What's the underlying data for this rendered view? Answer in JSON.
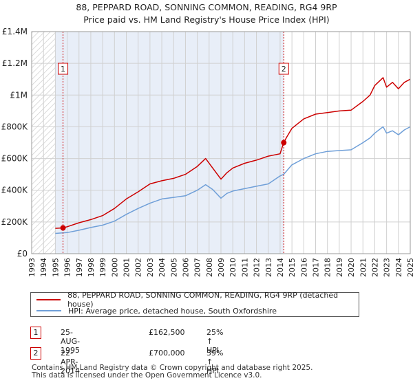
{
  "title_line1": "88, PEPPARD ROAD, SONNING COMMON, READING, RG4 9RP",
  "title_line2": "Price paid vs. HM Land Registry's House Price Index (HPI)",
  "colors": {
    "property": "#cc0000",
    "hpi": "#6f9fd8",
    "shade": "#e8eef8",
    "grid": "#d0d0d0"
  },
  "chart_data": {
    "type": "line",
    "title": "88, PEPPARD ROAD, SONNING COMMON, READING, RG4 9RP — Price paid vs. HM Land Registry's House Price Index (HPI)",
    "xlabel": "",
    "ylabel": "",
    "xlim": [
      1993,
      2025
    ],
    "ylim": [
      0,
      1400000
    ],
    "y_ticks": [
      {
        "value": 0,
        "label": "£0"
      },
      {
        "value": 200000,
        "label": "£200K"
      },
      {
        "value": 400000,
        "label": "£400K"
      },
      {
        "value": 600000,
        "label": "£600K"
      },
      {
        "value": 800000,
        "label": "£800K"
      },
      {
        "value": 1000000,
        "label": "£1M"
      },
      {
        "value": 1200000,
        "label": "£1.2M"
      },
      {
        "value": 1400000,
        "label": "£1.4M"
      }
    ],
    "x_ticks": [
      "1993",
      "1994",
      "1995",
      "1996",
      "1997",
      "1998",
      "1999",
      "2000",
      "2001",
      "2002",
      "2003",
      "2004",
      "2005",
      "2006",
      "2007",
      "2008",
      "2009",
      "2010",
      "2011",
      "2012",
      "2013",
      "2014",
      "2015",
      "2016",
      "2017",
      "2018",
      "2019",
      "2020",
      "2021",
      "2022",
      "2023",
      "2024",
      "2025"
    ],
    "data_start": 1995.0,
    "data_end": 2025.0,
    "shaded_range": [
      1995.0,
      2014.31
    ],
    "series": [
      {
        "name": "88, PEPPARD ROAD, SONNING COMMON, READING, RG4 9RP (detached house)",
        "x": [
          1995.0,
          1995.65,
          1996.0,
          1997.0,
          1998.0,
          1999.0,
          2000.0,
          2001.0,
          2002.0,
          2003.0,
          2004.0,
          2005.0,
          2006.0,
          2007.0,
          2007.7,
          2008.3,
          2009.0,
          2009.5,
          2010.0,
          2011.0,
          2012.0,
          2013.0,
          2014.0,
          2014.3,
          2014.6,
          2015.0,
          2016.0,
          2017.0,
          2018.0,
          2019.0,
          2020.0,
          2021.0,
          2021.6,
          2022.0,
          2022.7,
          2023.0,
          2023.5,
          2024.0,
          2024.5,
          2025.0
        ],
        "y": [
          160000,
          162500,
          170000,
          195000,
          215000,
          240000,
          285000,
          345000,
          390000,
          440000,
          460000,
          475000,
          500000,
          550000,
          600000,
          540000,
          470000,
          510000,
          540000,
          570000,
          590000,
          615000,
          630000,
          700000,
          740000,
          790000,
          850000,
          880000,
          890000,
          900000,
          905000,
          960000,
          1000000,
          1060000,
          1110000,
          1050000,
          1080000,
          1040000,
          1080000,
          1100000
        ]
      },
      {
        "name": "HPI: Average price, detached house, South Oxfordshire",
        "x": [
          1995.0,
          1996.0,
          1997.0,
          1998.0,
          1999.0,
          2000.0,
          2001.0,
          2002.0,
          2003.0,
          2004.0,
          2005.0,
          2006.0,
          2007.0,
          2007.7,
          2008.3,
          2009.0,
          2009.5,
          2010.0,
          2011.0,
          2012.0,
          2013.0,
          2014.0,
          2014.3,
          2015.0,
          2016.0,
          2017.0,
          2018.0,
          2019.0,
          2020.0,
          2021.0,
          2021.6,
          2022.0,
          2022.7,
          2023.0,
          2023.5,
          2024.0,
          2024.5,
          2025.0
        ],
        "y": [
          128000,
          133000,
          148000,
          165000,
          180000,
          205000,
          248000,
          285000,
          318000,
          345000,
          355000,
          365000,
          400000,
          435000,
          405000,
          350000,
          380000,
          395000,
          410000,
          425000,
          440000,
          490000,
          500000,
          560000,
          600000,
          630000,
          645000,
          650000,
          655000,
          700000,
          730000,
          760000,
          800000,
          760000,
          775000,
          750000,
          780000,
          800000
        ]
      }
    ],
    "markers": [
      {
        "id": "1",
        "x": 1995.65,
        "y": 162500
      },
      {
        "id": "2",
        "x": 2014.31,
        "y": 700000
      }
    ]
  },
  "legend": {
    "property_label": "88, PEPPARD ROAD, SONNING COMMON, READING, RG4 9RP (detached house)",
    "hpi_label": "HPI: Average price, detached house, South Oxfordshire"
  },
  "transactions": [
    {
      "id": "1",
      "date": "25-AUG-1995",
      "price": "£162,500",
      "hpi": "25% ↑ HPI"
    },
    {
      "id": "2",
      "date": "22-APR-2014",
      "price": "£700,000",
      "hpi": "39% ↑ HPI"
    }
  ],
  "footer_line1": "Contains HM Land Registry data © Crown copyright and database right 2025.",
  "footer_line2": "This data is licensed under the Open Government Licence v3.0."
}
